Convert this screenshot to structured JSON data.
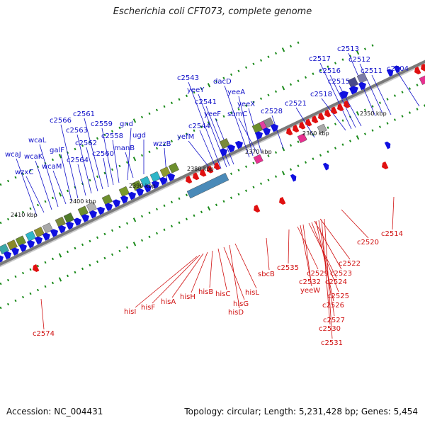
{
  "title": "Escherichia coli CFT073, complete genome",
  "footer": {
    "accession": "Accession: NC_004431",
    "topology": "Topology: circular; Length: 5,231,428 bp; Genes: 5,454"
  },
  "colors": {
    "forward_gene": "#1010e0",
    "reverse_gene": "#e01010",
    "top_label": "#1010c8",
    "bottom_label": "#d01010",
    "backbone": "#7a7a7a",
    "tick": "#1a8a1a"
  },
  "scale_labels": [
    "2410 kbp",
    "2400 kbp",
    "2390 kbp",
    "2380 kbp",
    "2370 kbp",
    "2360 kbp",
    "2350 kbp"
  ],
  "top_genes": [
    "wcaJ",
    "wzxC",
    "wcaK",
    "wcaL",
    "wcaM",
    "galF",
    "c2566",
    "c2564",
    "c2563",
    "c2562",
    "c2561",
    "c2560",
    "c2559",
    "c2558",
    "gnd",
    "manB",
    "ugd",
    "wzzB",
    "yefM",
    "c2544",
    "c2543",
    "yeeY",
    "c2541",
    "yeeF",
    "dacD",
    "yeeA",
    "sbmC",
    "yeeX",
    "c2528",
    "c2521",
    "c2518",
    "c2517",
    "c2516",
    "c2515",
    "c2513",
    "c2512",
    "c2511",
    "c2504"
  ],
  "bottom_genes": [
    "hisI",
    "hisF",
    "hisA",
    "hisH",
    "hisB",
    "hisC",
    "hisG",
    "hisD",
    "hisL",
    "sbcB",
    "c2535",
    "c2529",
    "c2532",
    "yeeW",
    "c2524",
    "c2523",
    "c2522",
    "c2525",
    "c2526",
    "c2527",
    "c2530",
    "c2531",
    "c2520",
    "c2514",
    "c2574"
  ]
}
